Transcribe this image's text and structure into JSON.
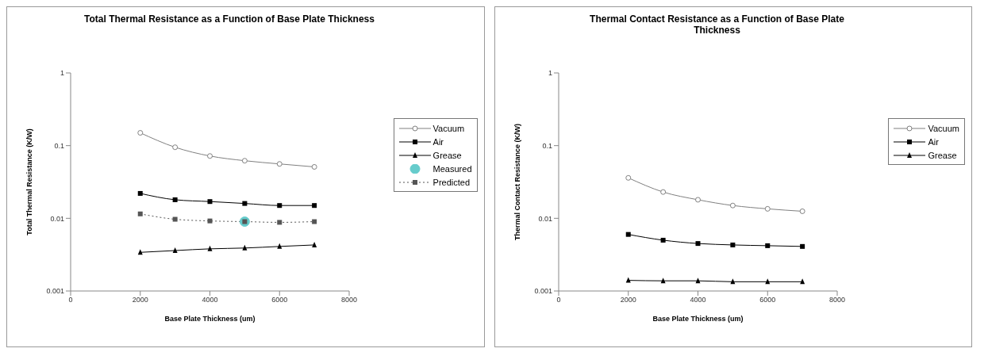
{
  "chart_data": [
    {
      "type": "line",
      "title": "Total Thermal Resistance as a Function of Base Plate Thickness",
      "xlabel": "Base Plate Thickness (um)",
      "ylabel": "Total Thermal Resistance (K/W)",
      "log": "y",
      "xlim": [
        0,
        8000
      ],
      "xticks": [
        0,
        2000,
        4000,
        6000,
        8000
      ],
      "ylim": [
        0.001,
        1
      ],
      "yticks": [
        0.001,
        0.01,
        0.1,
        1
      ],
      "grid": false,
      "legend": "right",
      "series": [
        {
          "name": "Vacuum",
          "color": "#808080",
          "marker": "circle",
          "line_style": "solid",
          "x": [
            2000,
            3000,
            4000,
            5000,
            6000,
            7000
          ],
          "values": [
            0.15,
            0.095,
            0.072,
            0.062,
            0.056,
            0.051
          ]
        },
        {
          "name": "Air",
          "color": "#000000",
          "marker": "square",
          "line_style": "solid",
          "x": [
            2000,
            3000,
            4000,
            5000,
            6000,
            7000
          ],
          "values": [
            0.022,
            0.018,
            0.017,
            0.016,
            0.015,
            0.015
          ]
        },
        {
          "name": "Grease",
          "color": "#000000",
          "marker": "triangle",
          "line_style": "solid",
          "x": [
            2000,
            3000,
            4000,
            5000,
            6000,
            7000
          ],
          "values": [
            0.0034,
            0.0036,
            0.0038,
            0.0039,
            0.0041,
            0.0043
          ]
        },
        {
          "name": "Measured",
          "type": "scatter",
          "color": "#66cccc",
          "marker": "circle",
          "x": [
            5000
          ],
          "values": [
            0.009
          ]
        },
        {
          "name": "Predicted",
          "color": "#555555",
          "marker": "square",
          "line_style": "dotted",
          "x": [
            2000,
            3000,
            4000,
            5000,
            6000,
            7000
          ],
          "values": [
            0.0115,
            0.0097,
            0.0092,
            0.009,
            0.0088,
            0.009
          ]
        }
      ]
    },
    {
      "type": "line",
      "title": "Thermal Contact Resistance as a Function of Base Plate Thickness",
      "xlabel": "Base Plate Thickness (um)",
      "ylabel": "Thermal Contact Resistance (K/W)",
      "log": "y",
      "xlim": [
        0,
        8000
      ],
      "xticks": [
        0,
        2000,
        4000,
        6000,
        8000
      ],
      "ylim": [
        0.001,
        1
      ],
      "yticks": [
        0.001,
        0.01,
        0.1,
        1
      ],
      "grid": false,
      "legend": "right",
      "series": [
        {
          "name": "Vacuum",
          "color": "#808080",
          "marker": "circle",
          "line_style": "solid",
          "x": [
            2000,
            3000,
            4000,
            5000,
            6000,
            7000
          ],
          "values": [
            0.036,
            0.023,
            0.018,
            0.015,
            0.0135,
            0.0125
          ]
        },
        {
          "name": "Air",
          "color": "#000000",
          "marker": "square",
          "line_style": "solid",
          "x": [
            2000,
            3000,
            4000,
            5000,
            6000,
            7000
          ],
          "values": [
            0.006,
            0.005,
            0.0045,
            0.0043,
            0.0042,
            0.0041
          ]
        },
        {
          "name": "Grease",
          "color": "#000000",
          "marker": "triangle",
          "line_style": "solid",
          "x": [
            2000,
            3000,
            4000,
            5000,
            6000,
            7000
          ],
          "values": [
            0.0014,
            0.00138,
            0.00138,
            0.00134,
            0.00134,
            0.00134
          ]
        }
      ]
    }
  ]
}
